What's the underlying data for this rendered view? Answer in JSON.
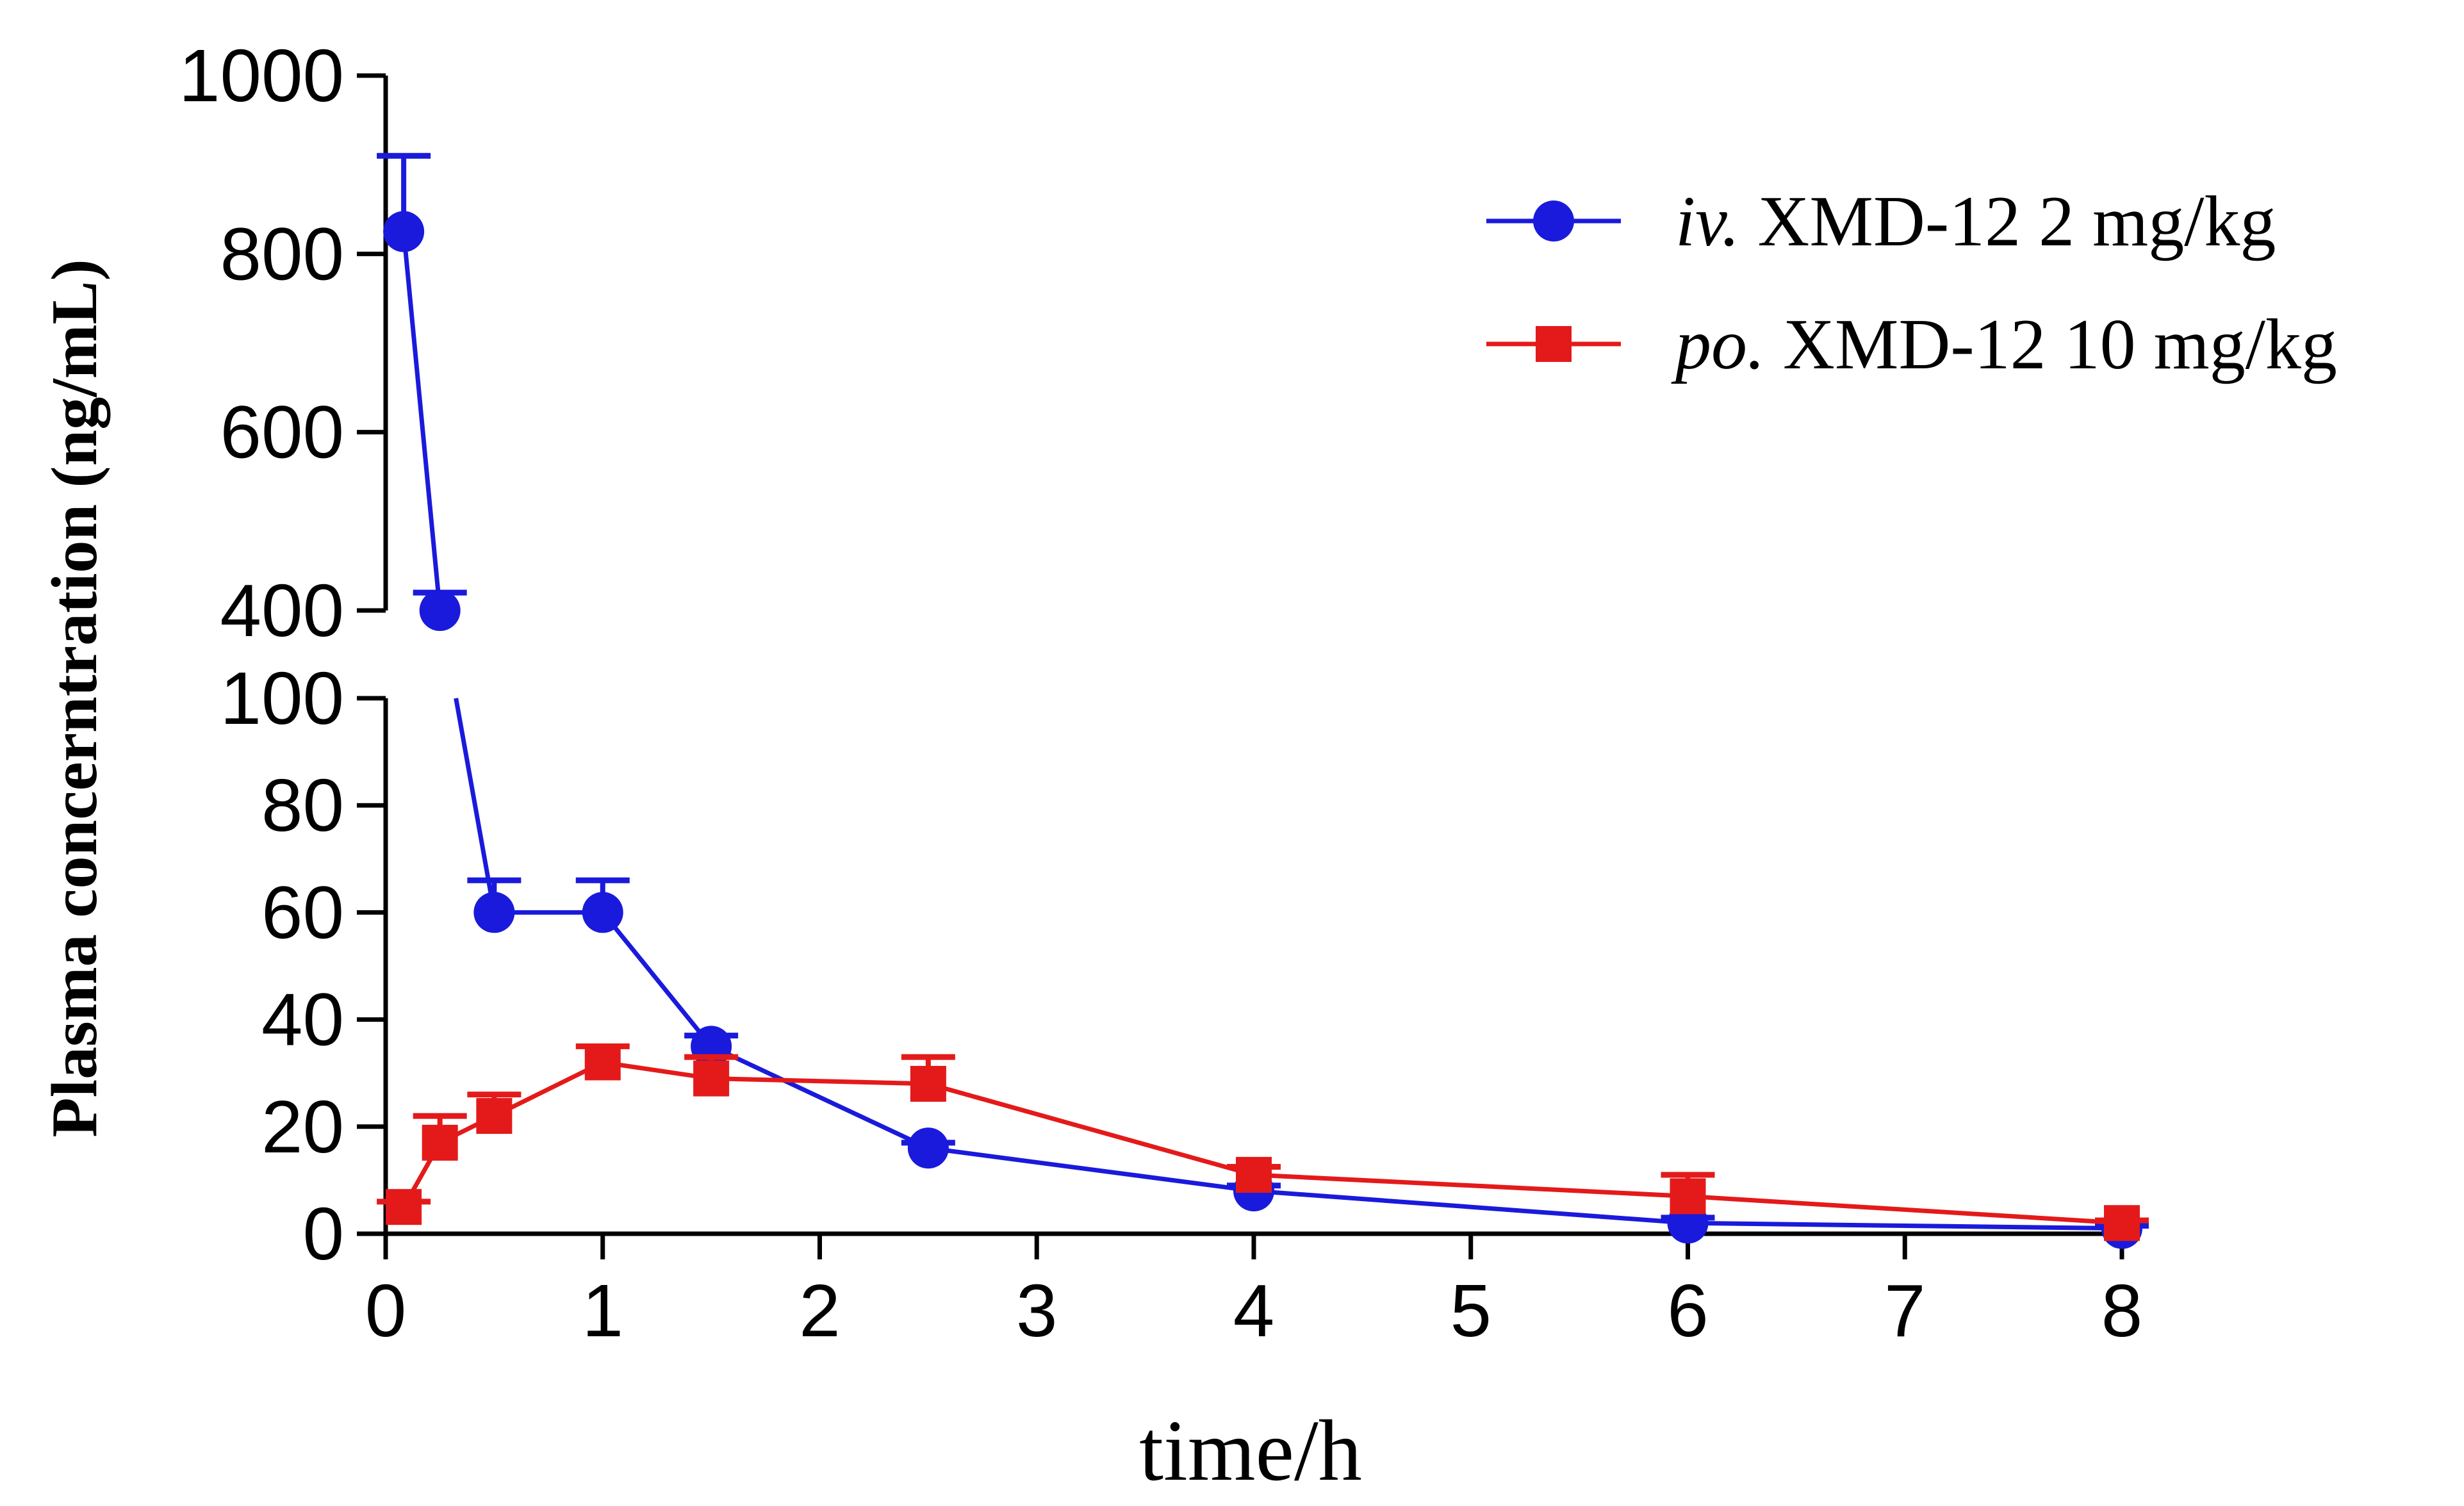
{
  "chart_data": {
    "type": "line",
    "title": "",
    "xlabel": "time/h",
    "ylabel": "Plasma concerntration (ng/mL)",
    "xlim": [
      0,
      8
    ],
    "x_ticks": [
      "0",
      "1",
      "2",
      "3",
      "4",
      "5",
      "6",
      "7",
      "8"
    ],
    "y_axis_broken": true,
    "y_lower_segment": {
      "range": [
        0,
        100
      ],
      "ticks": [
        "0",
        "20",
        "40",
        "60",
        "80",
        "100"
      ]
    },
    "y_upper_segment": {
      "range": [
        400,
        1000
      ],
      "ticks": [
        "400",
        "600",
        "800",
        "1000"
      ]
    },
    "grid": false,
    "legend_position": "top-right",
    "series": [
      {
        "name": "iv.",
        "label_rest": " XMD-12 2 mg/kg",
        "color": "#1a1adc",
        "marker": "circle",
        "x": [
          0.083,
          0.25,
          0.5,
          1,
          1.5,
          2.5,
          4,
          6,
          8
        ],
        "values": [
          825,
          400,
          60,
          60,
          35,
          16,
          8,
          2,
          1
        ],
        "error_plus": [
          85,
          20,
          6,
          6,
          2,
          1,
          1,
          1,
          0.5
        ]
      },
      {
        "name": "po.",
        "label_rest": " XMD-12 10 mg/kg",
        "color": "#e41a1a",
        "marker": "square",
        "x": [
          0.083,
          0.25,
          0.5,
          1,
          1.5,
          2.5,
          4,
          6,
          8
        ],
        "values": [
          5,
          17,
          22,
          32,
          29,
          28,
          11,
          7,
          2
        ],
        "error_plus": [
          1,
          5,
          4,
          3,
          4,
          5,
          1.5,
          4,
          0.5
        ]
      }
    ]
  }
}
